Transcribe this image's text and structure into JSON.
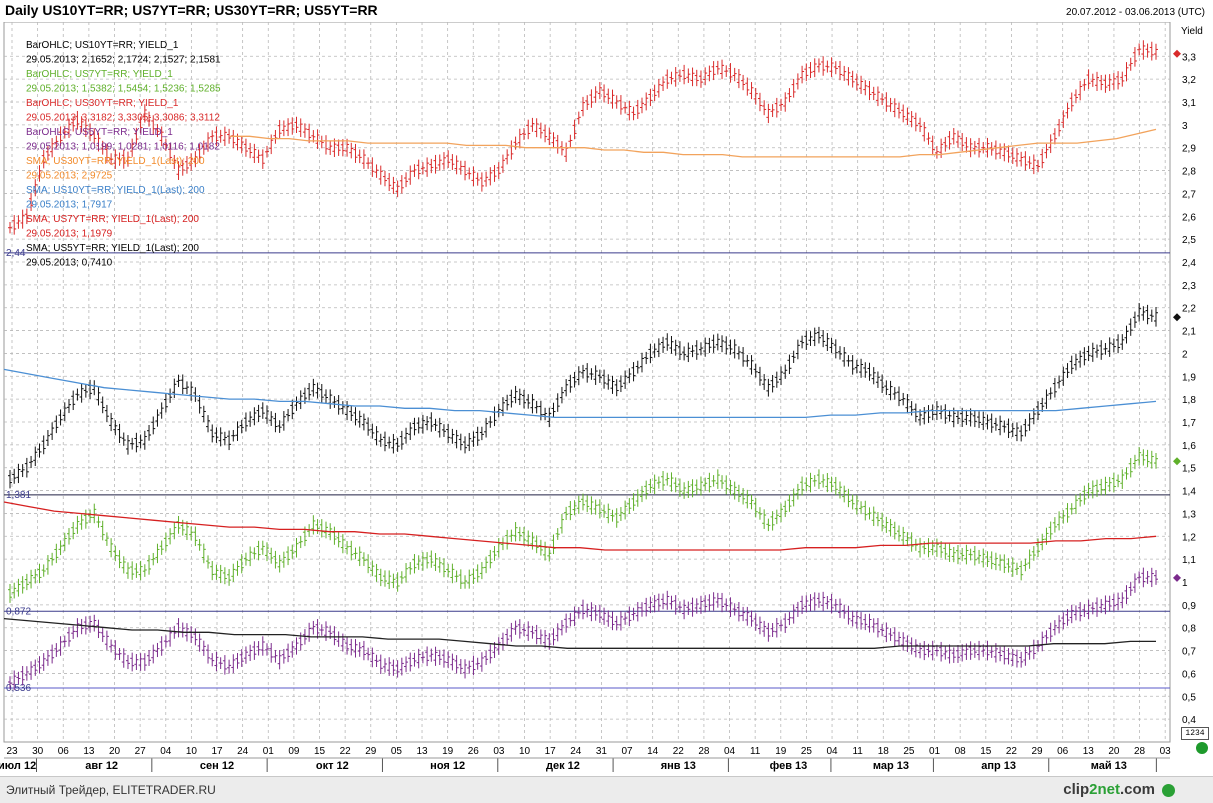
{
  "header": {
    "title": "Daily US10YT=RR; US7YT=RR; US30YT=RR; US5YT=RR",
    "date_range": "20.07.2012 - 03.06.2013 (UTC)"
  },
  "footer": {
    "text": "Элитный Трейдер, ELITETRADER.RU",
    "brand_prefix": "clip",
    "brand_suffix": "2net",
    "brand_tld": ".com"
  },
  "mini_box_label": "1234",
  "chart_data": {
    "type": "line",
    "title": "Daily US10YT=RR; US7YT=RR; US30YT=RR; US5YT=RR",
    "ylabel": "Yield",
    "ylim": [
      0.3,
      3.45
    ],
    "y_ticks": [
      0.4,
      0.5,
      0.6,
      0.7,
      0.8,
      0.9,
      1,
      1.1,
      1.2,
      1.3,
      1.4,
      1.5,
      1.6,
      1.7,
      1.8,
      1.9,
      2,
      2.1,
      2.2,
      2.3,
      2.4,
      2.5,
      2.6,
      2.7,
      2.8,
      2.9,
      3,
      3.1,
      3.2,
      3.3
    ],
    "y_tick_labels": [
      "0,4",
      "0,5",
      "0,6",
      "0,7",
      "0,8",
      "0,9",
      "1",
      "1,1",
      "1,2",
      "1,3",
      "1,4",
      "1,5",
      "1,6",
      "1,7",
      "1,8",
      "1,9",
      "2",
      "2,1",
      "2,2",
      "2,3",
      "2,4",
      "2,5",
      "2,6",
      "2,7",
      "2,8",
      "2,9",
      "3",
      "3,1",
      "3,2",
      "3,3"
    ],
    "x_day_ticks": [
      "23",
      "30",
      "06",
      "13",
      "20",
      "27",
      "04",
      "10",
      "17",
      "24",
      "01",
      "09",
      "15",
      "22",
      "29",
      "05",
      "13",
      "19",
      "26",
      "03",
      "10",
      "17",
      "24",
      "31",
      "07",
      "14",
      "22",
      "28",
      "04",
      "11",
      "19",
      "25",
      "04",
      "11",
      "18",
      "25",
      "01",
      "08",
      "15",
      "22",
      "29",
      "06",
      "13",
      "20",
      "28",
      "03"
    ],
    "x_month_labels": [
      "июл 12",
      "авг 12",
      "сен 12",
      "окт 12",
      "ноя 12",
      "дек 12",
      "янв 13",
      "фев 13",
      "мар 13",
      "апр 13",
      "май 13"
    ],
    "grid": true,
    "series": [
      {
        "name": "US30YT=RR",
        "color": "#d92a2a",
        "sma_color": "#f2a35c",
        "level_label": "2,44",
        "last": 3.3112,
        "sma": 2.9725,
        "values": [
          2.55,
          2.6,
          2.85,
          2.95,
          3.02,
          2.95,
          2.85,
          2.85,
          3.05,
          2.95,
          2.8,
          2.85,
          2.95,
          2.95,
          2.9,
          2.85,
          2.98,
          3.0,
          2.95,
          2.9,
          2.9,
          2.85,
          2.78,
          2.72,
          2.8,
          2.82,
          2.85,
          2.8,
          2.75,
          2.8,
          2.92,
          3.0,
          2.95,
          2.88,
          3.08,
          3.15,
          3.1,
          3.05,
          3.12,
          3.2,
          3.22,
          3.2,
          3.25,
          3.22,
          3.15,
          3.05,
          3.1,
          3.22,
          3.26,
          3.25,
          3.2,
          3.15,
          3.1,
          3.05,
          3.0,
          2.88,
          2.95,
          2.9,
          2.9,
          2.88,
          2.85,
          2.82,
          2.95,
          3.1,
          3.2,
          3.18,
          3.2,
          3.33,
          3.32
        ],
        "sma_values": [
          2.95,
          2.95,
          2.94,
          2.94,
          2.93,
          2.93,
          2.93,
          2.92,
          2.92,
          2.92,
          2.92,
          2.92,
          2.91,
          2.91,
          2.91,
          2.9,
          2.9,
          2.9,
          2.9,
          2.89,
          2.89,
          2.88,
          2.88,
          2.87,
          2.87,
          2.87,
          2.86,
          2.86,
          2.86,
          2.86,
          2.86,
          2.86,
          2.86,
          2.86,
          2.86,
          2.87,
          2.87,
          2.88,
          2.89,
          2.9,
          2.91,
          2.92,
          2.92,
          2.92,
          2.93,
          2.94,
          2.96,
          2.98
        ]
      },
      {
        "name": "US10YT=RR",
        "color": "#111111",
        "sma_color": "#4b8fd4",
        "level_label": "1,381",
        "last": 2.1581,
        "sma": 1.7917,
        "values": [
          1.45,
          1.5,
          1.6,
          1.72,
          1.82,
          1.85,
          1.7,
          1.6,
          1.62,
          1.75,
          1.88,
          1.82,
          1.65,
          1.62,
          1.7,
          1.75,
          1.68,
          1.78,
          1.85,
          1.8,
          1.75,
          1.7,
          1.62,
          1.6,
          1.68,
          1.7,
          1.65,
          1.6,
          1.65,
          1.75,
          1.82,
          1.78,
          1.72,
          1.85,
          1.92,
          1.9,
          1.85,
          1.92,
          2.0,
          2.05,
          2.0,
          2.02,
          2.05,
          2.02,
          1.95,
          1.85,
          1.92,
          2.05,
          2.08,
          2.02,
          1.95,
          1.92,
          1.85,
          1.8,
          1.72,
          1.75,
          1.72,
          1.72,
          1.7,
          1.68,
          1.65,
          1.75,
          1.85,
          1.95,
          2.0,
          2.02,
          2.05,
          2.18,
          2.16
        ],
        "sma_values": [
          1.93,
          1.91,
          1.89,
          1.87,
          1.85,
          1.84,
          1.83,
          1.82,
          1.81,
          1.8,
          1.8,
          1.79,
          1.79,
          1.78,
          1.77,
          1.77,
          1.76,
          1.76,
          1.75,
          1.75,
          1.74,
          1.73,
          1.72,
          1.72,
          1.72,
          1.72,
          1.72,
          1.72,
          1.72,
          1.72,
          1.72,
          1.72,
          1.72,
          1.73,
          1.73,
          1.74,
          1.74,
          1.75,
          1.75,
          1.75,
          1.75,
          1.75,
          1.75,
          1.76,
          1.77,
          1.78,
          1.79
        ]
      },
      {
        "name": "US7YT=RR",
        "color": "#5fb02a",
        "sma_color": "#d62020",
        "level_label": "0,872",
        "last": 1.5285,
        "sma": 1.1979,
        "values": [
          0.95,
          1.0,
          1.05,
          1.15,
          1.25,
          1.3,
          1.15,
          1.05,
          1.05,
          1.15,
          1.25,
          1.2,
          1.05,
          1.02,
          1.1,
          1.15,
          1.08,
          1.15,
          1.25,
          1.22,
          1.15,
          1.1,
          1.02,
          1.0,
          1.08,
          1.1,
          1.05,
          1.0,
          1.05,
          1.15,
          1.22,
          1.18,
          1.12,
          1.3,
          1.35,
          1.32,
          1.28,
          1.35,
          1.42,
          1.45,
          1.4,
          1.42,
          1.45,
          1.4,
          1.35,
          1.25,
          1.32,
          1.42,
          1.45,
          1.42,
          1.35,
          1.3,
          1.25,
          1.2,
          1.15,
          1.15,
          1.12,
          1.12,
          1.1,
          1.08,
          1.05,
          1.15,
          1.25,
          1.32,
          1.4,
          1.42,
          1.45,
          1.55,
          1.53
        ],
        "sma_values": [
          1.35,
          1.33,
          1.31,
          1.3,
          1.29,
          1.28,
          1.27,
          1.26,
          1.25,
          1.24,
          1.24,
          1.23,
          1.23,
          1.22,
          1.22,
          1.21,
          1.21,
          1.2,
          1.19,
          1.18,
          1.17,
          1.16,
          1.15,
          1.15,
          1.14,
          1.14,
          1.14,
          1.14,
          1.14,
          1.14,
          1.14,
          1.14,
          1.15,
          1.15,
          1.15,
          1.16,
          1.16,
          1.17,
          1.17,
          1.17,
          1.17,
          1.17,
          1.18,
          1.18,
          1.19,
          1.19,
          1.2
        ]
      },
      {
        "name": "US5YT=RR",
        "color": "#7b2a8c",
        "sma_color": "#222222",
        "level_label": "0,536",
        "last": 1.0182,
        "sma": 0.741,
        "values": [
          0.56,
          0.6,
          0.65,
          0.72,
          0.8,
          0.82,
          0.72,
          0.65,
          0.65,
          0.72,
          0.8,
          0.76,
          0.66,
          0.63,
          0.68,
          0.72,
          0.66,
          0.72,
          0.8,
          0.78,
          0.72,
          0.7,
          0.64,
          0.62,
          0.66,
          0.68,
          0.66,
          0.62,
          0.65,
          0.72,
          0.8,
          0.78,
          0.74,
          0.82,
          0.88,
          0.86,
          0.82,
          0.86,
          0.9,
          0.92,
          0.88,
          0.9,
          0.92,
          0.88,
          0.84,
          0.78,
          0.82,
          0.9,
          0.92,
          0.9,
          0.84,
          0.82,
          0.78,
          0.74,
          0.7,
          0.7,
          0.68,
          0.7,
          0.7,
          0.68,
          0.66,
          0.72,
          0.8,
          0.86,
          0.88,
          0.9,
          0.92,
          1.02,
          1.02
        ],
        "sma_values": [
          0.84,
          0.83,
          0.82,
          0.81,
          0.8,
          0.79,
          0.79,
          0.78,
          0.78,
          0.77,
          0.77,
          0.77,
          0.76,
          0.76,
          0.76,
          0.75,
          0.75,
          0.75,
          0.74,
          0.73,
          0.72,
          0.72,
          0.71,
          0.71,
          0.71,
          0.71,
          0.71,
          0.71,
          0.71,
          0.71,
          0.71,
          0.71,
          0.71,
          0.71,
          0.71,
          0.72,
          0.72,
          0.72,
          0.72,
          0.72,
          0.72,
          0.73,
          0.73,
          0.73,
          0.74,
          0.74
        ]
      }
    ],
    "legend": [
      {
        "text": "BarOHLC; US10YT=RR; YIELD_1",
        "color": "#000000"
      },
      {
        "text": "29.05.2013; 2,1652; 2,1724; 2,1527; 2,1581",
        "color": "#000000"
      },
      {
        "text": "BarOHLC; US7YT=RR; YIELD_1",
        "color": "#5fb02a"
      },
      {
        "text": "29.05.2013; 1,5382; 1,5454; 1,5236; 1,5285",
        "color": "#5fb02a"
      },
      {
        "text": "BarOHLC; US30YT=RR; YIELD_1",
        "color": "#d92a2a"
      },
      {
        "text": "29.05.2013; 3,3182; 3,3305; 3,3086; 3,3112",
        "color": "#d92a2a"
      },
      {
        "text": "BarOHLC; US5YT=RR; YIELD_1",
        "color": "#7b2a8c"
      },
      {
        "text": "29.05.2013; 1,0199; 1,0281; 1,0116; 1,0182",
        "color": "#7b2a8c"
      },
      {
        "text": "SMA; US30YT=RR; YIELD_1(Last); 200",
        "color": "#f28a2a"
      },
      {
        "text": "29.05.2013; 2,9725",
        "color": "#f28a2a"
      },
      {
        "text": "SMA; US10YT=RR; YIELD_1(Last); 200",
        "color": "#3a7fc8"
      },
      {
        "text": "29.05.2013; 1,7917",
        "color": "#3a7fc8"
      },
      {
        "text": "SMA; US7YT=RR; YIELD_1(Last); 200",
        "color": "#d62020"
      },
      {
        "text": "29.05.2013; 1,1979",
        "color": "#d62020"
      },
      {
        "text": "SMA; US5YT=RR; YIELD_1(Last); 200",
        "color": "#000000"
      },
      {
        "text": "29.05.2013; 0,7410",
        "color": "#000000"
      }
    ]
  }
}
